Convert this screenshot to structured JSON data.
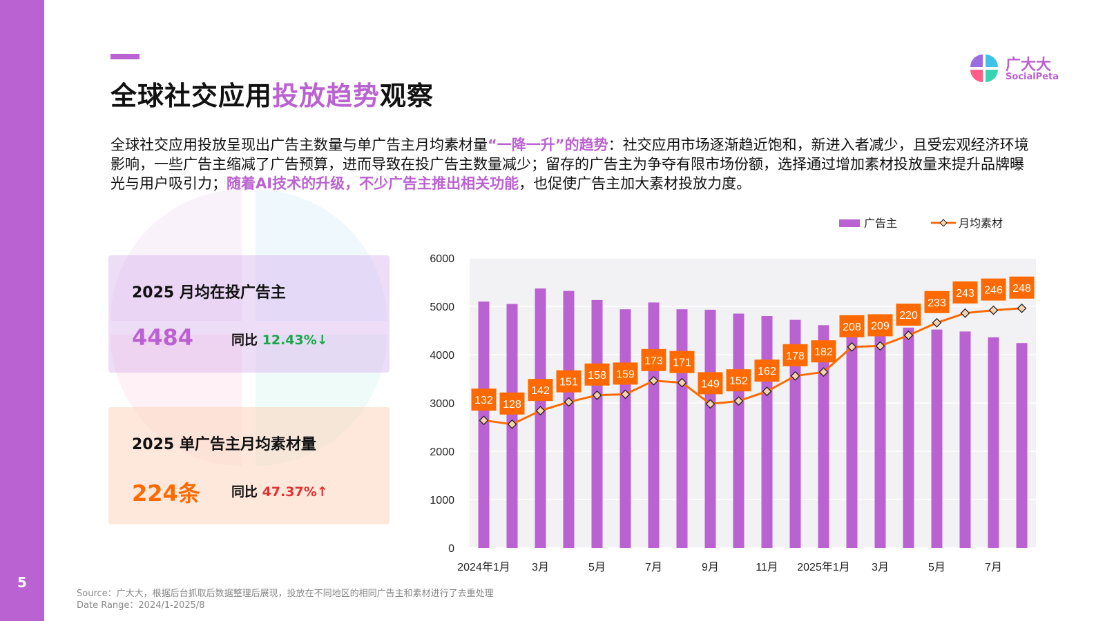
{
  "page": {
    "number": "5"
  },
  "header": {
    "title_part1": "全球社交应用",
    "title_highlight": "投放趋势",
    "title_part2": "观察"
  },
  "logo": {
    "name_cn": "广大大",
    "name_en": "SocialPeta"
  },
  "intro": {
    "p1": "全球社交应用投放呈现出广告主数量与单广告主月均素材量",
    "em1": "“一降一升”的趋势",
    "p2": "：社交应用市场逐渐趋近饱和，新进入者减少，且受宏观经济环境影响，一些广告主缩减了广告预算，进而导致在投广告主数量减少；留存的广告主为争夺有限市场份额，选择通过增加素材投放量来提升品牌曝光与用户吸引力；",
    "em2": "随着AI技术的升级，不少广告主推出相关功能",
    "p3": "，也促使广告主加大素材投放力度。"
  },
  "cards": [
    {
      "label": "2025 月均在投广告主",
      "value": "4484",
      "yoy_label": "同比",
      "yoy_value": "12.43%↓"
    },
    {
      "label": "2025 单广告主月均素材量",
      "value": "224条",
      "yoy_label": "同比",
      "yoy_value": "47.37%↑"
    }
  ],
  "colors": {
    "accent": "#bb62d2",
    "line": "#ff6a00",
    "down": "#1aa648",
    "up": "#e53030"
  },
  "chart_data": {
    "type": "bar",
    "categories": [
      "2024年1月",
      "2月",
      "3月",
      "4月",
      "5月",
      "6月",
      "7月",
      "8月",
      "9月",
      "10月",
      "11月",
      "12月",
      "2025年1月",
      "2月",
      "3月",
      "4月",
      "5月",
      "6月",
      "7月",
      "8月"
    ],
    "x_tick_labels": [
      "2024年1月",
      "",
      "3月",
      "",
      "5月",
      "",
      "7月",
      "",
      "9月",
      "",
      "11月",
      "",
      "2025年1月",
      "",
      "3月",
      "",
      "5月",
      "",
      "7月",
      ""
    ],
    "ylim": [
      0,
      6000
    ],
    "y_ticks": [
      0,
      1000,
      2000,
      3000,
      4000,
      5000,
      6000
    ],
    "grid": true,
    "legend_position": "top-right",
    "series": [
      {
        "name": "广告主",
        "type": "bar",
        "values": [
          5100,
          5050,
          5370,
          5320,
          5130,
          4940,
          5080,
          4940,
          4930,
          4850,
          4800,
          4720,
          4610,
          4720,
          4640,
          4560,
          4520,
          4480,
          4360,
          4240
        ]
      },
      {
        "name": "月均素材",
        "type": "line",
        "values": [
          132,
          128,
          142,
          151,
          158,
          159,
          173,
          171,
          149,
          152,
          162,
          178,
          182,
          208,
          209,
          220,
          233,
          243,
          246,
          248
        ],
        "labels": [
          "132",
          "128",
          "142",
          "151",
          "158",
          "159",
          "173",
          "171",
          "149",
          "152",
          "162",
          "178",
          "182",
          "208",
          "209",
          "220",
          "233",
          "243",
          "246",
          "248"
        ]
      }
    ]
  },
  "source": {
    "line1": "Source：广大大，根据后台抓取后数据整理后展现，投放在不同地区的相同广告主和素材进行了去重处理",
    "line2": "Date Range：2024/1-2025/8"
  }
}
